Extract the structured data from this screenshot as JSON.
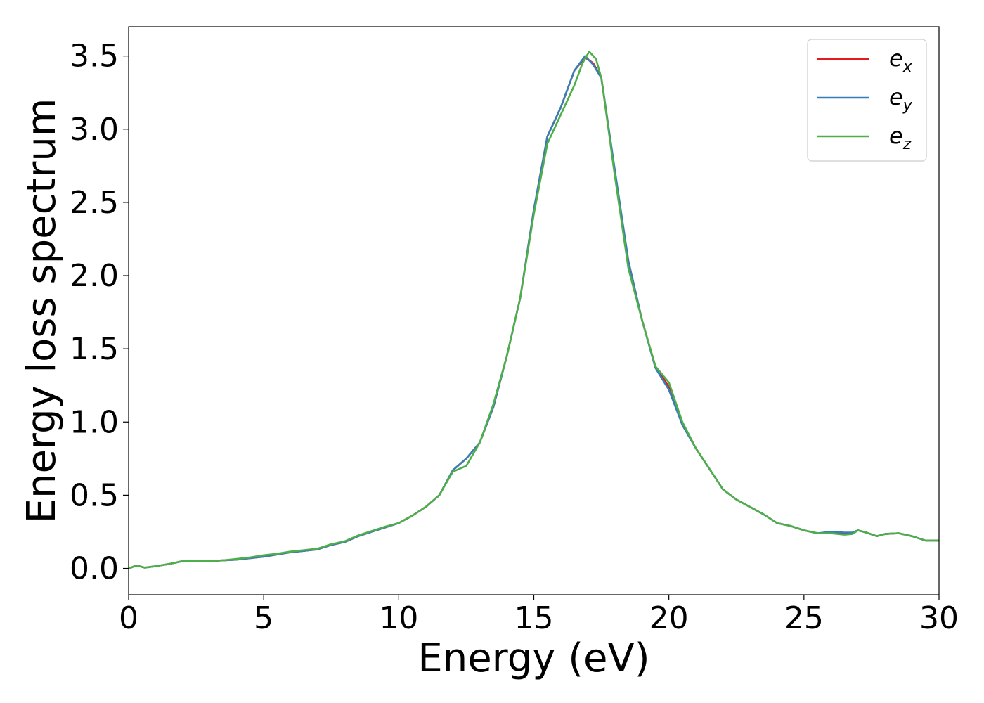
{
  "chart_data": {
    "type": "line",
    "xlabel": "Energy (eV)",
    "ylabel": "Energy loss spectrum",
    "xlim": [
      0,
      30
    ],
    "ylim": [
      -0.18,
      3.7
    ],
    "xticks": [
      "0",
      "5",
      "10",
      "15",
      "20",
      "25",
      "30"
    ],
    "yticks": [
      "0.0",
      "0.5",
      "1.0",
      "1.5",
      "2.0",
      "2.5",
      "3.0",
      "3.5"
    ],
    "grid": false,
    "legend_position": "top-right",
    "series": [
      {
        "name": "e",
        "subscript": "x",
        "color": "#e41a1c",
        "x": [
          0,
          0.3,
          0.6,
          1,
          1.5,
          2,
          2.5,
          3,
          3.5,
          4,
          4.5,
          5,
          5.5,
          6,
          6.5,
          7,
          7.5,
          8,
          8.5,
          9,
          9.5,
          10,
          10.5,
          11,
          11.5,
          12,
          12.5,
          13,
          13.5,
          14,
          14.5,
          15,
          15.5,
          16,
          16.5,
          16.9,
          17.2,
          17.5,
          18,
          18.5,
          19,
          19.5,
          20,
          20.5,
          21,
          21.5,
          22,
          22.5,
          23,
          23.5,
          24,
          24.5,
          25,
          25.5,
          26,
          26.5,
          26.8,
          27,
          27.3,
          27.7,
          28,
          28.5,
          29,
          29.5,
          30
        ],
        "y": [
          0.0,
          0.02,
          0.005,
          0.015,
          0.03,
          0.05,
          0.05,
          0.05,
          0.055,
          0.06,
          0.07,
          0.08,
          0.095,
          0.11,
          0.12,
          0.13,
          0.16,
          0.18,
          0.22,
          0.25,
          0.28,
          0.31,
          0.36,
          0.42,
          0.5,
          0.67,
          0.75,
          0.86,
          1.1,
          1.45,
          1.85,
          2.45,
          2.95,
          3.15,
          3.4,
          3.49,
          3.45,
          3.35,
          2.7,
          2.1,
          1.7,
          1.38,
          1.24,
          0.98,
          0.82,
          0.68,
          0.54,
          0.47,
          0.42,
          0.37,
          0.31,
          0.29,
          0.26,
          0.24,
          0.245,
          0.24,
          0.24,
          0.26,
          0.245,
          0.22,
          0.235,
          0.24,
          0.22,
          0.19,
          0.19
        ]
      },
      {
        "name": "e",
        "subscript": "y",
        "color": "#377eb8",
        "x": [
          0,
          0.3,
          0.6,
          1,
          1.5,
          2,
          2.5,
          3,
          3.5,
          4,
          4.5,
          5,
          5.5,
          6,
          6.5,
          7,
          7.5,
          8,
          8.5,
          9,
          9.5,
          10,
          10.5,
          11,
          11.5,
          12,
          12.5,
          13,
          13.5,
          14,
          14.5,
          15,
          15.5,
          16,
          16.5,
          16.9,
          17.2,
          17.5,
          18,
          18.5,
          19,
          19.5,
          20,
          20.5,
          21,
          21.5,
          22,
          22.5,
          23,
          23.5,
          24,
          24.5,
          25,
          25.5,
          26,
          26.5,
          26.8,
          27,
          27.3,
          27.7,
          28,
          28.5,
          29,
          29.5,
          30
        ],
        "y": [
          0.0,
          0.02,
          0.005,
          0.015,
          0.03,
          0.05,
          0.05,
          0.05,
          0.055,
          0.06,
          0.07,
          0.08,
          0.095,
          0.11,
          0.12,
          0.13,
          0.16,
          0.18,
          0.22,
          0.25,
          0.28,
          0.31,
          0.36,
          0.42,
          0.5,
          0.67,
          0.75,
          0.86,
          1.1,
          1.45,
          1.85,
          2.45,
          2.95,
          3.15,
          3.4,
          3.5,
          3.44,
          3.35,
          2.72,
          2.1,
          1.7,
          1.37,
          1.22,
          0.98,
          0.82,
          0.68,
          0.54,
          0.47,
          0.42,
          0.37,
          0.31,
          0.29,
          0.26,
          0.24,
          0.25,
          0.245,
          0.245,
          0.26,
          0.245,
          0.22,
          0.235,
          0.24,
          0.22,
          0.19,
          0.19
        ]
      },
      {
        "name": "e",
        "subscript": "z",
        "color": "#4daf4a",
        "x": [
          0,
          0.3,
          0.6,
          1,
          1.5,
          2,
          2.5,
          3,
          3.5,
          4,
          4.5,
          5,
          5.5,
          6,
          6.5,
          7,
          7.5,
          8,
          8.5,
          9,
          9.5,
          10,
          10.5,
          11,
          11.5,
          12,
          12.5,
          13,
          13.5,
          14,
          14.5,
          15,
          15.5,
          16,
          16.5,
          16.8,
          17.05,
          17.3,
          17.5,
          18,
          18.5,
          19,
          19.5,
          20,
          20.5,
          21,
          21.5,
          22,
          22.5,
          23,
          23.5,
          24,
          24.5,
          25,
          25.5,
          26,
          26.5,
          26.8,
          27,
          27.3,
          27.7,
          28,
          28.5,
          29,
          29.5,
          30
        ],
        "y": [
          0.0,
          0.02,
          0.005,
          0.015,
          0.03,
          0.05,
          0.05,
          0.05,
          0.055,
          0.065,
          0.075,
          0.09,
          0.1,
          0.115,
          0.125,
          0.135,
          0.165,
          0.185,
          0.225,
          0.255,
          0.285,
          0.31,
          0.36,
          0.42,
          0.5,
          0.66,
          0.7,
          0.86,
          1.12,
          1.45,
          1.85,
          2.42,
          2.9,
          3.1,
          3.3,
          3.45,
          3.53,
          3.48,
          3.35,
          2.68,
          2.05,
          1.7,
          1.38,
          1.27,
          1.0,
          0.82,
          0.68,
          0.54,
          0.47,
          0.42,
          0.37,
          0.31,
          0.29,
          0.26,
          0.24,
          0.24,
          0.23,
          0.235,
          0.26,
          0.245,
          0.22,
          0.235,
          0.24,
          0.22,
          0.19,
          0.19
        ]
      }
    ]
  }
}
